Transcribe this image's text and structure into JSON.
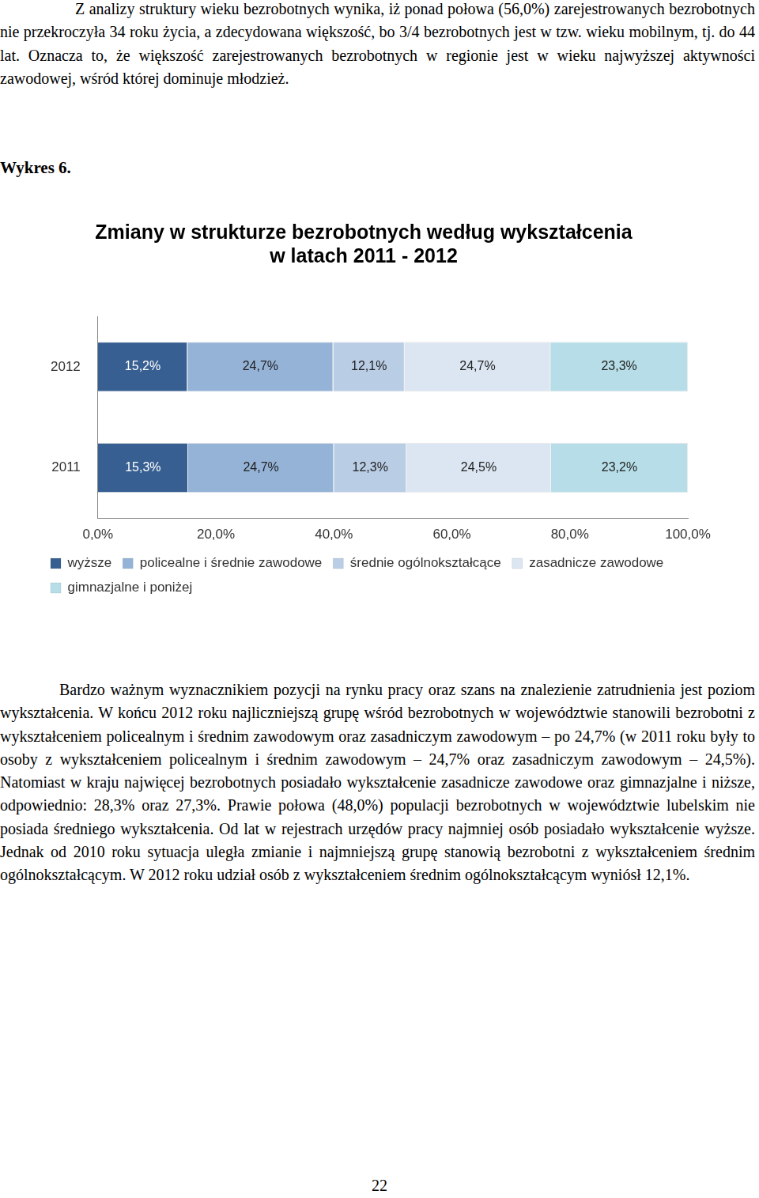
{
  "paragraphs": [
    "Z analizy struktury wieku bezrobotnych wynika, iż ponad połowa (56,0%) zarejestrowanych bezrobotnych nie przekroczyła 34 roku życia, a zdecydowana większość, bo 3/4 bezrobotnych jest w tzw. wieku mobilnym, tj. do 44 lat. Oznacza to, że większość zarejestrowanych bezrobotnych w regionie jest w wieku najwyższej aktywności zawodowej, wśród której dominuje młodzież.",
    "Bardzo ważnym wyznacznikiem pozycji na rynku pracy oraz szans na znalezienie zatrudnienia jest poziom wykształcenia. W końcu 2012 roku najliczniejszą grupę wśród bezrobotnych w województwie stanowili bezrobotni z wykształceniem policealnym i średnim zawodowym oraz zasadniczym zawodowym – po 24,7% (w 2011 roku były to osoby z wykształceniem policealnym i średnim zawodowym – 24,7% oraz zasadniczym zawodowym – 24,5%). Natomiast w kraju najwięcej bezrobotnych posiadało wykształcenie zasadnicze zawodowe oraz gimnazjalne i niższe, odpowiednio: 28,3% oraz 27,3%. Prawie połowa (48,0%) populacji bezrobotnych w województwie lubelskim nie posiada średniego wykształcenia. Od lat w rejestrach urzędów pracy najmniej osób posiadało wykształcenie wyższe. Jednak od 2010 roku sytuacja uległa zmianie i najmniejszą grupę stanowią bezrobotni z wykształceniem średnim ogólnokształcącym. W 2012 roku udział osób z wykształceniem średnim ogólnokształcącym wyniósł 12,1%."
  ],
  "figure_label": "Wykres 6.",
  "chart_data": {
    "type": "bar",
    "title": [
      "Zmiany w strukturze bezrobotnych według wykształcenia",
      "w latach 2011 - 2012"
    ],
    "orientation": "horizontal",
    "stacked": true,
    "data_labels": true,
    "grid": false,
    "legend": "bottom",
    "categories": [
      "2012",
      "2011"
    ],
    "series": [
      {
        "name": "wyższe",
        "color": "#375f91",
        "values": [
          15.2,
          15.3
        ],
        "value_labels": [
          "15,2%",
          "15,3%"
        ]
      },
      {
        "name": "policealne i średnie zawodowe",
        "color": "#95b3d7",
        "values": [
          24.7,
          24.7
        ],
        "value_labels": [
          "24,7%",
          "24,7%"
        ]
      },
      {
        "name": "średnie ogólnokształcące",
        "color": "#b9cde5",
        "values": [
          12.1,
          12.3
        ],
        "value_labels": [
          "12,1%",
          "12,3%"
        ]
      },
      {
        "name": "zasadnicze zawodowe",
        "color": "#dce6f2",
        "values": [
          24.7,
          24.5
        ],
        "value_labels": [
          "24,7%",
          "24,5%"
        ]
      },
      {
        "name": "gimnazjalne i poniżej",
        "color": "#b7dee8",
        "values": [
          23.3,
          23.2
        ],
        "value_labels": [
          "23,3%",
          "23,2%"
        ]
      }
    ],
    "xlim": [
      0,
      100
    ],
    "xticks": [
      {
        "value": 0,
        "label": "0,0%"
      },
      {
        "value": 20,
        "label": "20,0%"
      },
      {
        "value": 40,
        "label": "40,0%"
      },
      {
        "value": 60,
        "label": "60,0%"
      },
      {
        "value": 80,
        "label": "80,0%"
      },
      {
        "value": 100,
        "label": "100,0%"
      }
    ]
  },
  "page_number": 22
}
